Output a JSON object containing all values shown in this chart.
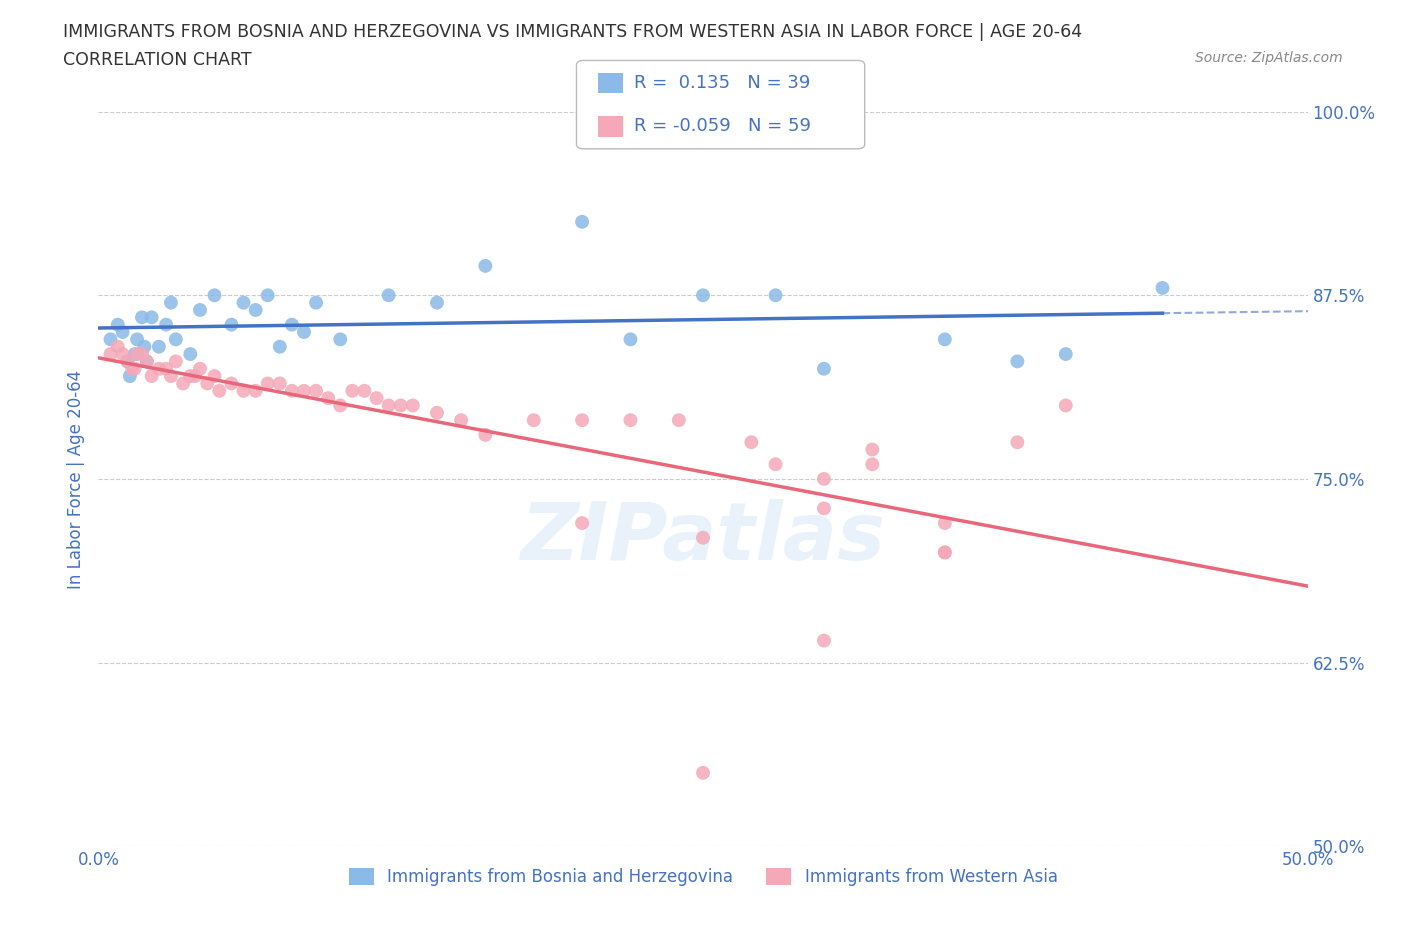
{
  "title_line1": "IMMIGRANTS FROM BOSNIA AND HERZEGOVINA VS IMMIGRANTS FROM WESTERN ASIA IN LABOR FORCE | AGE 20-64",
  "title_line2": "CORRELATION CHART",
  "source_text": "Source: ZipAtlas.com",
  "ylabel": "In Labor Force | Age 20-64",
  "xlim": [
    0.0,
    0.5
  ],
  "ylim": [
    0.5,
    1.0
  ],
  "right_yticks": [
    1.0,
    0.875,
    0.75,
    0.625,
    0.5
  ],
  "right_yticklabels": [
    "100.0%",
    "87.5%",
    "75.0%",
    "62.5%",
    "50.0%"
  ],
  "blue_R": 0.135,
  "blue_N": 39,
  "pink_R": -0.059,
  "pink_N": 59,
  "blue_color": "#8BBAE8",
  "pink_color": "#F4A8B8",
  "blue_line_color": "#4472C4",
  "pink_line_color": "#E8677A",
  "blue_scatter_x": [
    0.005,
    0.008,
    0.01,
    0.012,
    0.013,
    0.015,
    0.016,
    0.018,
    0.019,
    0.02,
    0.022,
    0.025,
    0.028,
    0.03,
    0.032,
    0.038,
    0.042,
    0.048,
    0.055,
    0.06,
    0.065,
    0.07,
    0.075,
    0.08,
    0.085,
    0.09,
    0.1,
    0.12,
    0.14,
    0.16,
    0.2,
    0.22,
    0.25,
    0.28,
    0.3,
    0.35,
    0.38,
    0.4,
    0.44
  ],
  "blue_scatter_y": [
    0.845,
    0.855,
    0.85,
    0.83,
    0.82,
    0.835,
    0.845,
    0.86,
    0.84,
    0.83,
    0.86,
    0.84,
    0.855,
    0.87,
    0.845,
    0.835,
    0.865,
    0.875,
    0.855,
    0.87,
    0.865,
    0.875,
    0.84,
    0.855,
    0.85,
    0.87,
    0.845,
    0.875,
    0.87,
    0.895,
    0.925,
    0.845,
    0.875,
    0.875,
    0.825,
    0.845,
    0.83,
    0.835,
    0.88
  ],
  "pink_scatter_x": [
    0.005,
    0.008,
    0.01,
    0.012,
    0.014,
    0.015,
    0.016,
    0.018,
    0.02,
    0.022,
    0.025,
    0.028,
    0.03,
    0.032,
    0.035,
    0.038,
    0.04,
    0.042,
    0.045,
    0.048,
    0.05,
    0.055,
    0.06,
    0.065,
    0.07,
    0.075,
    0.08,
    0.085,
    0.09,
    0.095,
    0.1,
    0.105,
    0.11,
    0.115,
    0.12,
    0.125,
    0.13,
    0.14,
    0.15,
    0.16,
    0.18,
    0.2,
    0.22,
    0.25,
    0.28,
    0.3,
    0.32,
    0.35,
    0.2,
    0.24,
    0.27,
    0.3,
    0.32,
    0.35,
    0.38,
    0.4,
    0.35,
    0.3,
    0.25
  ],
  "pink_scatter_y": [
    0.835,
    0.84,
    0.835,
    0.83,
    0.825,
    0.825,
    0.835,
    0.835,
    0.83,
    0.82,
    0.825,
    0.825,
    0.82,
    0.83,
    0.815,
    0.82,
    0.82,
    0.825,
    0.815,
    0.82,
    0.81,
    0.815,
    0.81,
    0.81,
    0.815,
    0.815,
    0.81,
    0.81,
    0.81,
    0.805,
    0.8,
    0.81,
    0.81,
    0.805,
    0.8,
    0.8,
    0.8,
    0.795,
    0.79,
    0.78,
    0.79,
    0.79,
    0.79,
    0.71,
    0.76,
    0.75,
    0.77,
    0.7,
    0.72,
    0.79,
    0.775,
    0.64,
    0.76,
    0.72,
    0.775,
    0.8,
    0.7,
    0.73,
    0.55
  ],
  "legend_label_blue": "Immigrants from Bosnia and Herzegovina",
  "legend_label_pink": "Immigrants from Western Asia",
  "grid_color": "#CCCCCC",
  "background_color": "#FFFFFF",
  "title_color": "#333333",
  "axis_label_color": "#4472C4",
  "tick_color": "#4472C4",
  "watermark_text": "ZIPatlas",
  "watermark_color": "#D0E4F5",
  "watermark_alpha": 0.45
}
